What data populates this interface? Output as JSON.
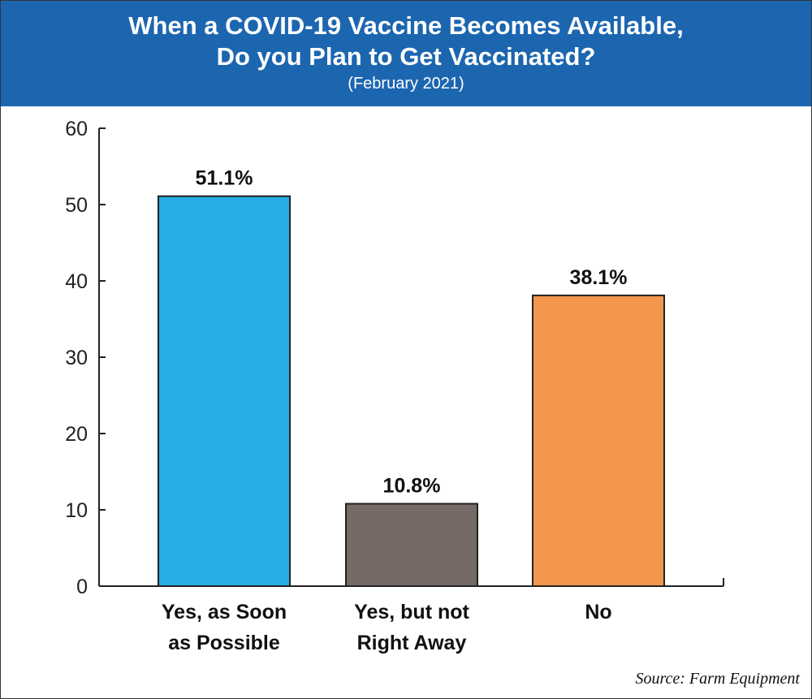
{
  "colors": {
    "header_bg": "#1c66b0"
  },
  "chart_data": {
    "type": "bar",
    "title": "When a COVID-19 Vaccine Becomes Available,\nDo you Plan to Get Vaccinated?",
    "subtitle": "(February 2021)",
    "categories": [
      "Yes, as Soon as Possible",
      "Yes, but not Right Away",
      "No"
    ],
    "category_lines": [
      [
        "Yes, as Soon",
        "as Possible"
      ],
      [
        "Yes, but not",
        "Right Away"
      ],
      [
        "No"
      ]
    ],
    "values": [
      51.1,
      10.8,
      38.1
    ],
    "data_labels": [
      "51.1%",
      "10.8%",
      "38.1%"
    ],
    "bar_colors": [
      "#27aee6",
      "#756a66",
      "#f5964d"
    ],
    "ylim": [
      0,
      60
    ],
    "yticks": [
      0,
      10,
      20,
      30,
      40,
      50,
      60
    ],
    "xlabel": "",
    "ylabel": "",
    "grid": false,
    "source": "Source: Farm Equipment"
  }
}
